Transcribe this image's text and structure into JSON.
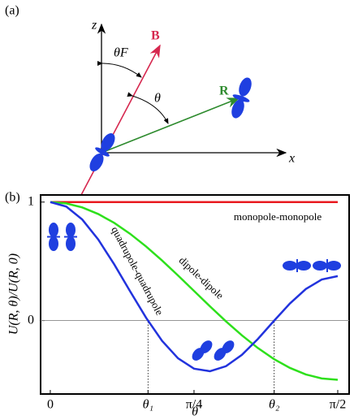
{
  "diagram": {
    "panel_label": "(a)",
    "z_label": "z",
    "x_label": "x",
    "b_label": "B",
    "r_label": "R",
    "theta_f_label": "θF",
    "theta_label": "θ"
  },
  "chart_data": {
    "type": "line",
    "panel_label": "(b)",
    "x_label": "θ",
    "y_label": "U(R, θ)/U(R, 0)",
    "x": [
      0,
      0.0873,
      0.1745,
      0.2618,
      0.3491,
      0.4363,
      0.5236,
      0.6109,
      0.6981,
      0.7854,
      0.8727,
      0.9599,
      1.0472,
      1.1345,
      1.2217,
      1.309,
      1.3963,
      1.4835,
      1.5708
    ],
    "series": [
      {
        "name": "monopole-monopole",
        "color": "#e8191f",
        "values": [
          1,
          1,
          1,
          1,
          1,
          1,
          1,
          1,
          1,
          1,
          1,
          1,
          1,
          1,
          1,
          1,
          1,
          1,
          1
        ]
      },
      {
        "name": "dipole-dipole",
        "color": "#2ee01c",
        "values": [
          1,
          0.9886,
          0.9548,
          0.8995,
          0.8245,
          0.7321,
          0.625,
          0.5065,
          0.3802,
          0.25,
          0.1198,
          -0.0065,
          -0.125,
          -0.2321,
          -0.3245,
          -0.3995,
          -0.4548,
          -0.4886,
          -0.5
        ]
      },
      {
        "name": "quadrupole-quadrupole",
        "color": "#2233dd",
        "values": [
          1,
          0.9623,
          0.8532,
          0.6847,
          0.4749,
          0.2465,
          0.0234,
          -0.1714,
          -0.319,
          -0.4063,
          -0.4275,
          -0.3852,
          -0.2891,
          -0.1552,
          -0.0038,
          0.1434,
          0.2659,
          0.3468,
          0.375
        ]
      }
    ],
    "xlim": [
      -0.053,
      1.633
    ],
    "ylim": [
      -0.62,
      1.06
    ],
    "xticks": [
      0,
      {
        "value": 0.534,
        "label": "θ₁"
      },
      {
        "value": 0.7854,
        "label": "π/4"
      },
      {
        "value": 1.2234,
        "label": "θ₂"
      },
      {
        "value": 1.5708,
        "label": "π/2"
      }
    ],
    "yticks": [
      0,
      1
    ]
  }
}
